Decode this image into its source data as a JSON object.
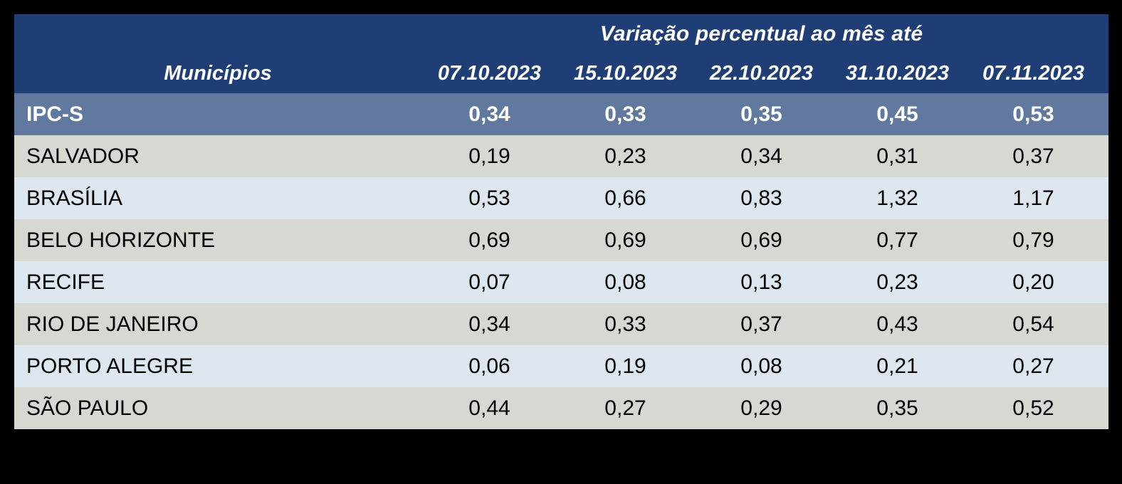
{
  "theme": {
    "page_bg": "#000000",
    "header_bg": "#1F3E76",
    "summary_bg": "#62799F",
    "row_gray": "#D8D8D3",
    "row_blue": "#DEE6EF",
    "header_text": "#FFFFFF",
    "summary_text": "#FFFFFF",
    "body_text": "#000000"
  },
  "table": {
    "header": {
      "group_title": "Variação percentual ao mês até",
      "municipios_label": "Municípios",
      "date_columns": [
        "07.10.2023",
        "15.10.2023",
        "22.10.2023",
        "31.10.2023",
        "07.11.2023"
      ]
    },
    "summary_row": {
      "label": "IPC-S",
      "values": [
        "0,34",
        "0,33",
        "0,35",
        "0,45",
        "0,53"
      ]
    },
    "rows": [
      {
        "label": "SALVADOR",
        "values": [
          "0,19",
          "0,23",
          "0,34",
          "0,31",
          "0,37"
        ]
      },
      {
        "label": "BRASÍLIA",
        "values": [
          "0,53",
          "0,66",
          "0,83",
          "1,32",
          "1,17"
        ]
      },
      {
        "label": "BELO HORIZONTE",
        "values": [
          "0,69",
          "0,69",
          "0,69",
          "0,77",
          "0,79"
        ]
      },
      {
        "label": "RECIFE",
        "values": [
          "0,07",
          "0,08",
          "0,13",
          "0,23",
          "0,20"
        ]
      },
      {
        "label": "RIO DE JANEIRO",
        "values": [
          "0,34",
          "0,33",
          "0,37",
          "0,43",
          "0,54"
        ]
      },
      {
        "label": "PORTO ALEGRE",
        "values": [
          "0,06",
          "0,19",
          "0,08",
          "0,21",
          "0,27"
        ]
      },
      {
        "label": "SÃO PAULO",
        "values": [
          "0,44",
          "0,27",
          "0,29",
          "0,35",
          "0,52"
        ]
      }
    ]
  },
  "chart_data": {
    "type": "table",
    "title": "Variação percentual ao mês até",
    "row_header": "Municípios",
    "categories": [
      "07.10.2023",
      "15.10.2023",
      "22.10.2023",
      "31.10.2023",
      "07.11.2023"
    ],
    "series": [
      {
        "name": "IPC-S",
        "values": [
          0.34,
          0.33,
          0.35,
          0.45,
          0.53
        ]
      },
      {
        "name": "SALVADOR",
        "values": [
          0.19,
          0.23,
          0.34,
          0.31,
          0.37
        ]
      },
      {
        "name": "BRASÍLIA",
        "values": [
          0.53,
          0.66,
          0.83,
          1.32,
          1.17
        ]
      },
      {
        "name": "BELO HORIZONTE",
        "values": [
          0.69,
          0.69,
          0.69,
          0.77,
          0.79
        ]
      },
      {
        "name": "RECIFE",
        "values": [
          0.07,
          0.08,
          0.13,
          0.23,
          0.2
        ]
      },
      {
        "name": "RIO DE JANEIRO",
        "values": [
          0.34,
          0.33,
          0.37,
          0.43,
          0.54
        ]
      },
      {
        "name": "PORTO ALEGRE",
        "values": [
          0.06,
          0.19,
          0.08,
          0.21,
          0.27
        ]
      },
      {
        "name": "SÃO PAULO",
        "values": [
          0.44,
          0.27,
          0.29,
          0.35,
          0.52
        ]
      }
    ],
    "layout_hints": {
      "units": "percent change",
      "decimal_separator": ",",
      "summary_row": "IPC-S"
    }
  }
}
